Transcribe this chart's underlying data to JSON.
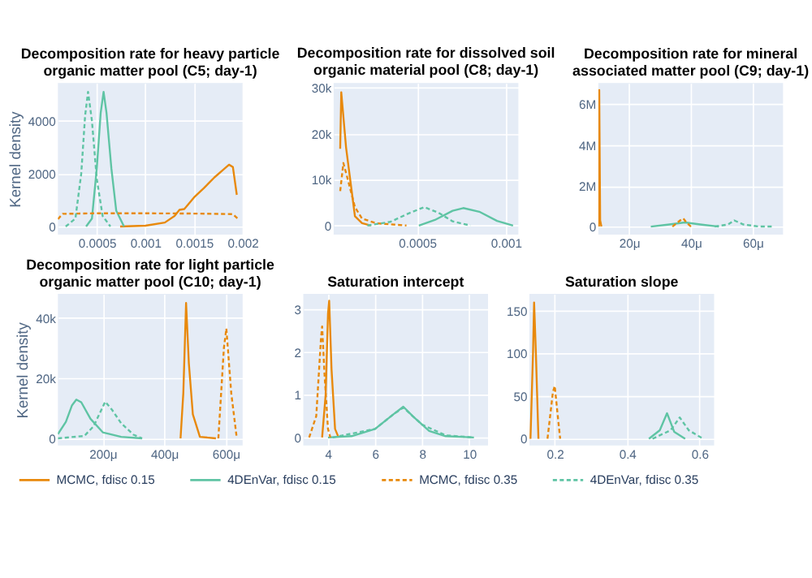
{
  "chart_data": [
    {
      "type": "line",
      "title": "Decomposition rate for heavy particle organic matter pool (C5; day-1)",
      "ylabel": "Kernel density",
      "legend": "bottom",
      "grid": true,
      "marker": "none",
      "xlim": [
        0.0001,
        0.002
      ],
      "xticks": [
        0.0005,
        0.001,
        0.0015,
        0.002
      ],
      "ylim": [
        -310,
        5430
      ],
      "yticks": [
        0,
        2000,
        4000
      ],
      "series": [
        {
          "name": "MCMC, fdisc 0.15",
          "color": "#e8890c",
          "line_style": "solid",
          "x": [
            0.00074,
            0.001,
            0.0012,
            0.0013,
            0.00135,
            0.0014,
            0.0015,
            0.0016,
            0.00171,
            0.0018,
            0.00186,
            0.0019,
            0.00194
          ],
          "values": [
            0,
            30,
            150,
            400,
            630,
            660,
            1100,
            1450,
            1860,
            2150,
            2340,
            2250,
            1200
          ]
        },
        {
          "name": "4DEnVar, fdisc 0.15",
          "color": "#5fc4a4",
          "line_style": "solid",
          "x": [
            0.00039,
            0.00045,
            0.0005,
            0.00054,
            0.00057,
            0.0006,
            0.00065,
            0.0007,
            0.00078
          ],
          "values": [
            0,
            300,
            2200,
            4300,
            5100,
            4300,
            2200,
            600,
            0
          ]
        },
        {
          "name": "MCMC, fdisc 0.35",
          "color": "#e8890c",
          "line_style": "dashed",
          "x": [
            0.0001,
            0.00015,
            0.0005,
            0.001,
            0.0015,
            0.0019,
            0.00195
          ],
          "values": [
            280,
            480,
            500,
            500,
            490,
            470,
            300
          ]
        },
        {
          "name": "4DEnVar, fdisc 0.35",
          "color": "#5fc4a4",
          "line_style": "dashed",
          "x": [
            0.00018,
            0.00028,
            0.00034,
            0.00038,
            0.00041,
            0.00045,
            0.0005,
            0.00056,
            0.00064
          ],
          "values": [
            0,
            300,
            2000,
            4200,
            5100,
            4000,
            1800,
            400,
            0
          ]
        }
      ]
    },
    {
      "type": "line",
      "title": "Decomposition rate for dissolved soil organic material pool (C8; day-1)",
      "legend": "bottom",
      "grid": true,
      "marker": "none",
      "xlim": [
        3e-05,
        0.00107
      ],
      "xticks": [
        {
          "value": 0.0005,
          "label": "0.0005"
        },
        {
          "value": 0.001,
          "label": "0.001"
        }
      ],
      "ylim": [
        -2000,
        31000
      ],
      "yticks": [
        0,
        {
          "value": 10000,
          "label": "10k"
        },
        {
          "value": 20000,
          "label": "20k"
        },
        {
          "value": 30000,
          "label": "30k"
        }
      ],
      "series": [
        {
          "name": "MCMC, fdisc 0.15",
          "color": "#e8890c",
          "line_style": "solid",
          "x": [
            6.7e-05,
            7.3e-05,
            0.0001,
            0.00013,
            0.00015,
            0.00019,
            0.00024
          ],
          "values": [
            16700,
            29000,
            17000,
            8000,
            2000,
            500,
            0
          ]
        },
        {
          "name": "4DEnVar, fdisc 0.15",
          "color": "#5fc4a4",
          "line_style": "solid",
          "x": [
            0.00051,
            0.0006,
            0.0007,
            0.00076,
            0.00085,
            0.00095,
            0.00104
          ],
          "values": [
            0,
            1200,
            3200,
            3800,
            3000,
            1000,
            0
          ]
        },
        {
          "name": "MCMC, fdisc 0.35",
          "color": "#e8890c",
          "line_style": "dashed",
          "x": [
            6.7e-05,
            8.5e-05,
            0.00011,
            0.00015,
            0.00019,
            0.00027,
            0.00044
          ],
          "values": [
            7500,
            13600,
            10000,
            4000,
            1500,
            500,
            0
          ]
        },
        {
          "name": "4DEnVar, fdisc 0.35",
          "color": "#5fc4a4",
          "line_style": "dashed",
          "x": [
            0.00022,
            0.00035,
            0.00045,
            0.00054,
            0.00062,
            0.0007,
            0.0008
          ],
          "values": [
            0,
            800,
            2600,
            4000,
            2800,
            900,
            0
          ]
        }
      ]
    },
    {
      "type": "line",
      "title": "Decomposition rate for mineral associated matter pool (C9; day-1)",
      "legend": "bottom",
      "grid": true,
      "marker": "none",
      "xlim": [
        10,
        69.8
      ],
      "xticks": [
        {
          "value": 20,
          "label": "20μ"
        },
        {
          "value": 40,
          "label": "40μ"
        },
        {
          "value": 60,
          "label": "60μ"
        }
      ],
      "ylim": [
        -400000,
        7040000
      ],
      "yticks": [
        0,
        {
          "value": 2000000,
          "label": "2M"
        },
        {
          "value": 4000000,
          "label": "4M"
        },
        {
          "value": 6000000,
          "label": "6M"
        }
      ],
      "series": [
        {
          "name": "MCMC, fdisc 0.15",
          "color": "#e8890c",
          "line_style": "solid",
          "x": [
            10.2,
            10.3,
            10.6,
            11
          ],
          "values": [
            0,
            6700000,
            300000,
            0
          ]
        },
        {
          "name": "4DEnVar, fdisc 0.15",
          "color": "#5fc4a4",
          "line_style": "solid",
          "x": [
            27,
            33,
            38,
            43,
            49
          ],
          "values": [
            0,
            100000,
            200000,
            100000,
            0
          ]
        },
        {
          "name": "MCMC, fdisc 0.35",
          "color": "#e8890c",
          "line_style": "dashed",
          "x": [
            34,
            36.5,
            37.5,
            38.5,
            40
          ],
          "values": [
            0,
            300000,
            400000,
            200000,
            0
          ]
        },
        {
          "name": "4DEnVar, fdisc 0.35",
          "color": "#5fc4a4",
          "line_style": "dashed",
          "x": [
            47.7,
            52,
            54,
            57,
            62,
            67
          ],
          "values": [
            0,
            100000,
            300000,
            100000,
            0,
            0
          ]
        }
      ]
    },
    {
      "type": "line",
      "title": "Decomposition rate for light particle organic matter pool (C10; day-1)",
      "ylabel": "Kernel density",
      "legend": "bottom",
      "grid": true,
      "marker": "none",
      "xlim": [
        54,
        655
      ],
      "xticks": [
        {
          "value": 200,
          "label": "200μ"
        },
        {
          "value": 400,
          "label": "400μ"
        },
        {
          "value": 600,
          "label": "600μ"
        }
      ],
      "ylim": [
        -2400,
        48000
      ],
      "yticks": [
        0,
        {
          "value": 20000,
          "label": "20k"
        },
        {
          "value": 40000,
          "label": "40k"
        }
      ],
      "series": [
        {
          "name": "MCMC, fdisc 0.15",
          "color": "#e8890c",
          "line_style": "solid",
          "x": [
            453,
            462,
            471,
            480,
            493,
            516,
            568
          ],
          "values": [
            0,
            15000,
            45000,
            25000,
            8000,
            500,
            0
          ]
        },
        {
          "name": "4DEnVar, fdisc 0.15",
          "color": "#5fc4a4",
          "line_style": "solid",
          "x": [
            54,
            80,
            100,
            114,
            130,
            160,
            200,
            260,
            328
          ],
          "values": [
            1400,
            5500,
            11000,
            12900,
            12000,
            6500,
            2000,
            500,
            0
          ]
        },
        {
          "name": "MCMC, fdisc 0.35",
          "color": "#e8890c",
          "line_style": "dashed",
          "x": [
            576,
            594,
            602,
            618,
            636
          ],
          "values": [
            0,
            30000,
            36500,
            15000,
            0
          ]
        },
        {
          "name": "4DEnVar, fdisc 0.35",
          "color": "#5fc4a4",
          "line_style": "dashed",
          "x": [
            54,
            140,
            170,
            208,
            230,
            260,
            300,
            328
          ],
          "values": [
            0,
            800,
            4000,
            12200,
            9500,
            5000,
            1200,
            0
          ]
        }
      ]
    },
    {
      "type": "line",
      "title": "Saturation intercept",
      "legend": "bottom",
      "grid": true,
      "marker": "none",
      "xlim": [
        2.95,
        10.8
      ],
      "xticks": [
        4,
        6,
        8,
        10
      ],
      "ylim": [
        -0.19,
        3.36
      ],
      "yticks": [
        0,
        1,
        2,
        3
      ],
      "series": [
        {
          "name": "MCMC, fdisc 0.15",
          "color": "#e8890c",
          "line_style": "solid",
          "x": [
            3.75,
            3.9,
            4.0,
            4.05,
            4.15,
            4.3,
            4.45
          ],
          "values": [
            0,
            1.0,
            2.9,
            3.2,
            1.6,
            0.2,
            0
          ]
        },
        {
          "name": "4DEnVar, fdisc 0.15",
          "color": "#5fc4a4",
          "line_style": "solid",
          "x": [
            4.0,
            5.0,
            6.0,
            6.8,
            7.2,
            7.6,
            8.3,
            9.0,
            10.2
          ],
          "values": [
            0,
            0.03,
            0.2,
            0.55,
            0.72,
            0.5,
            0.15,
            0.03,
            0
          ]
        },
        {
          "name": "MCMC, fdisc 0.35",
          "color": "#e8890c",
          "line_style": "dashed",
          "x": [
            3.2,
            3.5,
            3.7,
            3.75,
            3.85,
            4.0,
            4.1
          ],
          "values": [
            0,
            0.5,
            2.3,
            2.6,
            1.5,
            0.2,
            0
          ]
        },
        {
          "name": "4DEnVar, fdisc 0.35",
          "color": "#5fc4a4",
          "line_style": "dashed",
          "x": [
            4.2,
            6.0,
            6.8,
            7.2,
            8.0,
            9.0,
            10.2
          ],
          "values": [
            0,
            0.2,
            0.55,
            0.7,
            0.3,
            0.05,
            0
          ]
        }
      ]
    },
    {
      "type": "line",
      "title": "Saturation slope",
      "legend": "bottom",
      "grid": true,
      "marker": "none",
      "xlim": [
        0.13,
        0.64
      ],
      "xticks": [
        0.2,
        0.4,
        0.6
      ],
      "ylim": [
        -8,
        170
      ],
      "yticks": [
        0,
        50,
        100,
        150
      ],
      "series": [
        {
          "name": "MCMC, fdisc 0.15",
          "color": "#e8890c",
          "line_style": "solid",
          "x": [
            0.133,
            0.14,
            0.143,
            0.148,
            0.155
          ],
          "values": [
            0,
            100,
            160,
            100,
            0
          ]
        },
        {
          "name": "4DEnVar, fdisc 0.15",
          "color": "#5fc4a4",
          "line_style": "solid",
          "x": [
            0.46,
            0.49,
            0.51,
            0.53,
            0.56
          ],
          "values": [
            0,
            10,
            30,
            8,
            0
          ]
        },
        {
          "name": "MCMC, fdisc 0.35",
          "color": "#e8890c",
          "line_style": "dashed",
          "x": [
            0.18,
            0.195,
            0.2,
            0.21,
            0.215
          ],
          "values": [
            0,
            55,
            62,
            20,
            0
          ]
        },
        {
          "name": "4DEnVar, fdisc 0.35",
          "color": "#5fc4a4",
          "line_style": "dashed",
          "x": [
            0.47,
            0.52,
            0.545,
            0.57,
            0.61
          ],
          "values": [
            0,
            10,
            25,
            10,
            0
          ]
        }
      ]
    }
  ]
}
